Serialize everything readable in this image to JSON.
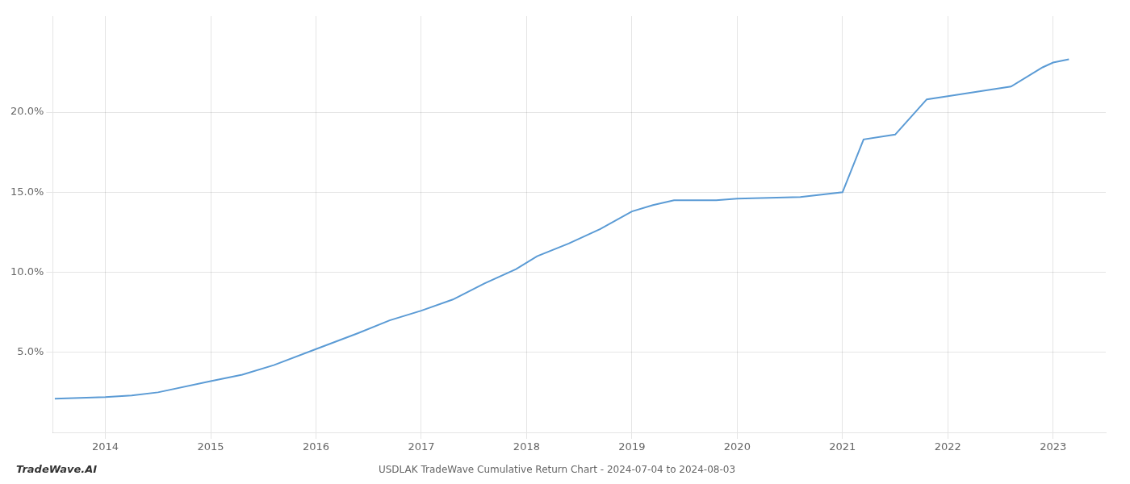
{
  "chart_data": {
    "type": "line",
    "title": "USDLAK TradeWave Cumulative Return Chart - 2024-07-04 to 2024-08-03",
    "annotations": [
      "TradeWave.AI"
    ],
    "color": "#5B9BD5",
    "x": [
      2013.52,
      2014.0,
      2014.25,
      2014.5,
      2015.0,
      2015.3,
      2015.6,
      2016.0,
      2016.4,
      2016.7,
      2017.0,
      2017.3,
      2017.6,
      2017.9,
      2018.1,
      2018.4,
      2018.7,
      2019.0,
      2019.2,
      2019.4,
      2019.6,
      2019.8,
      2020.0,
      2020.3,
      2020.6,
      2021.0,
      2021.2,
      2021.5,
      2021.8,
      2022.0,
      2022.3,
      2022.6,
      2022.9,
      2023.0,
      2023.15
    ],
    "values": [
      2.1,
      2.2,
      2.3,
      2.5,
      3.2,
      3.6,
      4.2,
      5.2,
      6.2,
      7.0,
      7.6,
      8.3,
      9.3,
      10.2,
      11.0,
      11.8,
      12.7,
      13.8,
      14.2,
      14.5,
      14.5,
      14.5,
      14.6,
      14.65,
      14.7,
      15.0,
      18.3,
      18.6,
      20.8,
      21.0,
      21.3,
      21.6,
      22.8,
      23.1,
      23.3
    ],
    "xlim": [
      2013.5,
      2023.5
    ],
    "xticks": [
      2014,
      2015,
      2016,
      2017,
      2018,
      2019,
      2020,
      2021,
      2022,
      2023
    ],
    "ylim": [
      0,
      26
    ],
    "yticks": [
      {
        "value": 5.0,
        "label": "5.0%"
      },
      {
        "value": 10.0,
        "label": "10.0%"
      },
      {
        "value": 15.0,
        "label": "15.0%"
      },
      {
        "value": 20.0,
        "label": "20.0%"
      }
    ],
    "grid": true
  }
}
